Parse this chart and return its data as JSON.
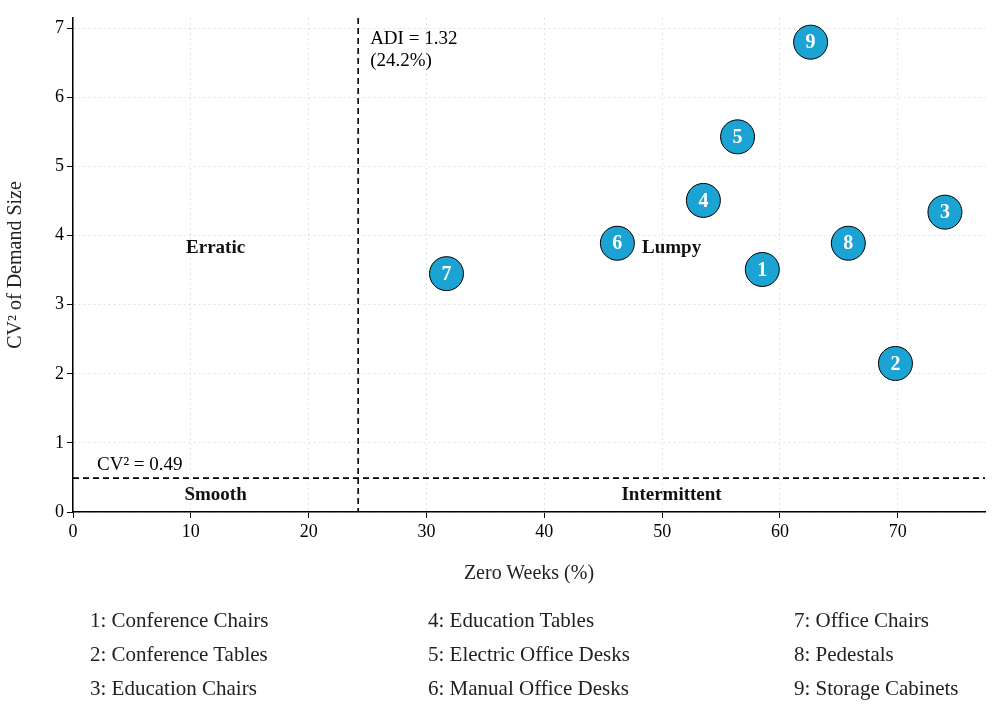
{
  "chart_data": {
    "type": "scatter",
    "xlabel": "Zero Weeks (%)",
    "ylabel": "CV² of Demand Size",
    "xlim": [
      0,
      77.4
    ],
    "xticks": [
      0,
      10,
      20,
      30,
      40,
      50,
      60,
      70
    ],
    "ylim": [
      0,
      7.15
    ],
    "yticks": [
      0,
      1,
      2,
      3,
      4,
      5,
      6,
      7
    ],
    "grid": true,
    "marker": "circle",
    "series": [
      {
        "name": "1",
        "color": "#1aa3d3",
        "x": [
          58.5
        ],
        "values": [
          3.51
        ]
      },
      {
        "name": "2",
        "color": "#1aa3d3",
        "x": [
          69.8
        ],
        "values": [
          2.15
        ]
      },
      {
        "name": "3",
        "color": "#1aa3d3",
        "x": [
          74.0
        ],
        "values": [
          4.34
        ]
      },
      {
        "name": "4",
        "color": "#1aa3d3",
        "x": [
          53.5
        ],
        "values": [
          4.51
        ]
      },
      {
        "name": "5",
        "color": "#1aa3d3",
        "x": [
          56.4
        ],
        "values": [
          5.43
        ]
      },
      {
        "name": "6",
        "color": "#1aa3d3",
        "x": [
          46.2
        ],
        "values": [
          3.89
        ]
      },
      {
        "name": "7",
        "color": "#1aa3d3",
        "x": [
          31.7
        ],
        "values": [
          3.45
        ]
      },
      {
        "name": "8",
        "color": "#1aa3d3",
        "x": [
          65.8
        ],
        "values": [
          3.89
        ]
      },
      {
        "name": "9",
        "color": "#1aa3d3",
        "x": [
          62.6
        ],
        "values": [
          6.8
        ]
      }
    ],
    "ref_lines": [
      {
        "axis": "x",
        "value": 24.2,
        "label": "ADI = 1.32\n(24.2%)",
        "line_style": "dashed",
        "color": "#000000"
      },
      {
        "axis": "y",
        "value": 0.49,
        "label": "CV² = 0.49",
        "line_style": "dashed",
        "color": "#000000"
      }
    ],
    "annotations": [
      "Erratic",
      "Lumpy",
      "Smooth",
      "Intermittent",
      "1: Conference Chairs",
      "2: Conference Tables",
      "3: Education Chairs",
      "4: Education Tables",
      "5: Electric Office Desks",
      "6: Manual Office Desks",
      "7: Office Chairs",
      "8: Pedestals",
      "9: Storage Cabinets"
    ]
  }
}
